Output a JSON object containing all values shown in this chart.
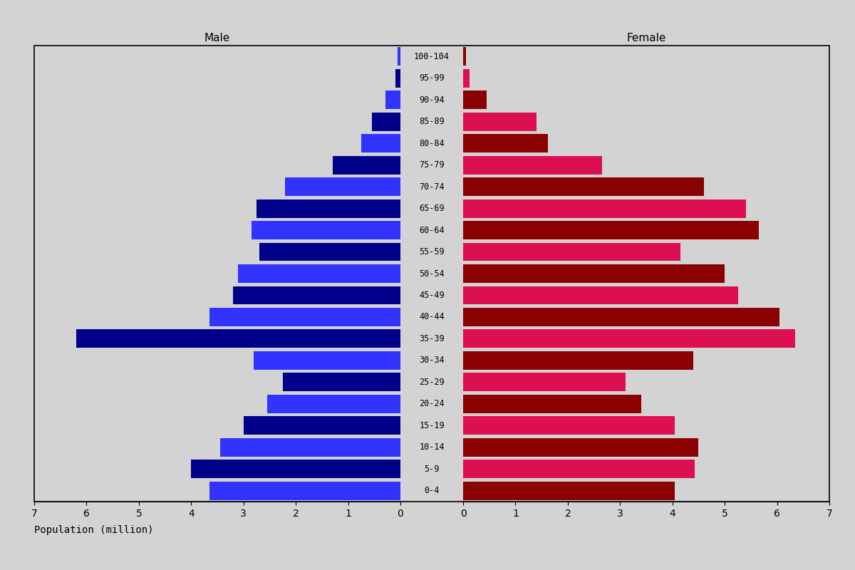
{
  "age_groups": [
    "0-4",
    "5-9",
    "10-14",
    "15-19",
    "20-24",
    "25-29",
    "30-34",
    "35-39",
    "40-44",
    "45-49",
    "50-54",
    "55-59",
    "60-64",
    "65-69",
    "70-74",
    "75-79",
    "80-84",
    "85-89",
    "90-94",
    "95-99",
    "100-104"
  ],
  "male_values": [
    3.65,
    4.0,
    3.45,
    3.0,
    2.55,
    2.25,
    2.8,
    6.2,
    3.65,
    3.2,
    3.1,
    2.7,
    2.85,
    2.75,
    2.2,
    1.3,
    0.75,
    0.55,
    0.28,
    0.1,
    0.05
  ],
  "female_values": [
    4.05,
    4.42,
    4.5,
    4.05,
    3.4,
    3.1,
    4.4,
    6.35,
    6.05,
    5.25,
    5.0,
    4.15,
    5.65,
    5.4,
    4.6,
    2.65,
    1.62,
    1.4,
    0.45,
    0.12,
    0.05
  ],
  "male_colors": [
    "#3333FF",
    "#00008B",
    "#3333FF",
    "#00008B",
    "#3333FF",
    "#00008B",
    "#3333FF",
    "#00008B",
    "#3333FF",
    "#00008B",
    "#3333FF",
    "#00008B",
    "#3333FF",
    "#00008B",
    "#3333FF",
    "#00008B",
    "#3333FF",
    "#00008B",
    "#3333FF",
    "#00008B",
    "#3333FF"
  ],
  "female_colors": [
    "#8B0000",
    "#DC1050",
    "#8B0000",
    "#DC1050",
    "#8B0000",
    "#DC1050",
    "#8B0000",
    "#DC1050",
    "#8B0000",
    "#DC1050",
    "#8B0000",
    "#DC1050",
    "#8B0000",
    "#DC1050",
    "#8B0000",
    "#DC1050",
    "#8B0000",
    "#DC1050",
    "#8B0000",
    "#DC1050",
    "#8B0000"
  ],
  "male_label": "Male",
  "female_label": "Female",
  "xlabel": "Population (million)",
  "xlim": 7,
  "background_color": "#D3D3D3",
  "bar_height": 0.85,
  "title_fontsize": 11,
  "tick_fontsize": 10,
  "label_fontsize": 8.5
}
